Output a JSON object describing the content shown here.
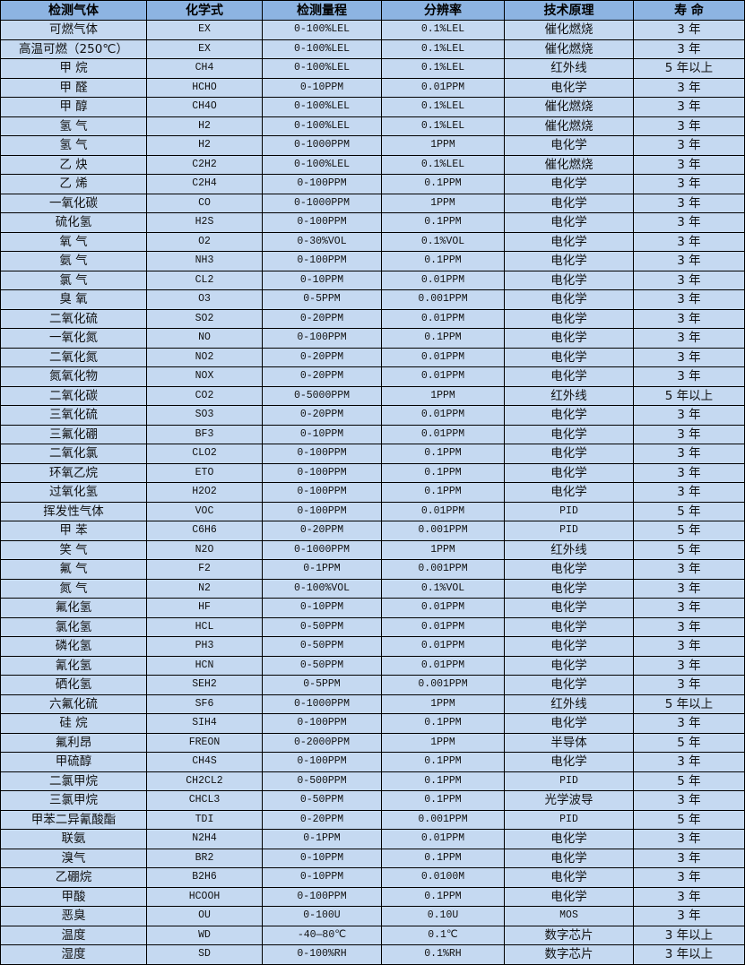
{
  "headers": [
    "检测气体",
    "化学式",
    "检测量程",
    "分辨率",
    "技术原理",
    "寿 命"
  ],
  "rows": [
    [
      "可燃气体",
      "EX",
      "0-100%LEL",
      "0.1%LEL",
      "催化燃烧",
      "3 年"
    ],
    [
      "高温可燃（250℃）",
      "EX",
      "0-100%LEL",
      "0.1%LEL",
      "催化燃烧",
      "3 年"
    ],
    [
      "甲 烷",
      "CH4",
      "0-100%LEL",
      "0.1%LEL",
      "红外线",
      "5 年以上"
    ],
    [
      "甲 醛",
      "HCHO",
      "0-10PPM",
      "0.01PPM",
      "电化学",
      "3 年"
    ],
    [
      "甲 醇",
      "CH4O",
      "0-100%LEL",
      "0.1%LEL",
      "催化燃烧",
      "3 年"
    ],
    [
      "氢 气",
      "H2",
      "0-100%LEL",
      "0.1%LEL",
      "催化燃烧",
      "3 年"
    ],
    [
      "氢 气",
      "H2",
      "0-1000PPM",
      "1PPM",
      "电化学",
      "3 年"
    ],
    [
      "乙 炔",
      "C2H2",
      "0-100%LEL",
      "0.1%LEL",
      "催化燃烧",
      "3 年"
    ],
    [
      "乙 烯",
      "C2H4",
      "0-100PPM",
      "0.1PPM",
      "电化学",
      "3 年"
    ],
    [
      "一氧化碳",
      "CO",
      "0-1000PPM",
      "1PPM",
      "电化学",
      "3 年"
    ],
    [
      "硫化氢",
      "H2S",
      "0-100PPM",
      "0.1PPM",
      "电化学",
      "3 年"
    ],
    [
      "氧 气",
      "O2",
      "0-30%VOL",
      "0.1%VOL",
      "电化学",
      "3 年"
    ],
    [
      "氨 气",
      "NH3",
      "0-100PPM",
      "0.1PPM",
      "电化学",
      "3 年"
    ],
    [
      "氯 气",
      "CL2",
      "0-10PPM",
      "0.01PPM",
      "电化学",
      "3 年"
    ],
    [
      "臭 氧",
      "O3",
      "0-5PPM",
      "0.001PPM",
      "电化学",
      "3 年"
    ],
    [
      "二氧化硫",
      "SO2",
      "0-20PPM",
      "0.01PPM",
      "电化学",
      "3 年"
    ],
    [
      "一氧化氮",
      "NO",
      "0-100PPM",
      "0.1PPM",
      "电化学",
      "3 年"
    ],
    [
      "二氧化氮",
      "NO2",
      "0-20PPM",
      "0.01PPM",
      "电化学",
      "3 年"
    ],
    [
      "氮氧化物",
      "NOX",
      "0-20PPM",
      "0.01PPM",
      "电化学",
      "3 年"
    ],
    [
      "二氧化碳",
      "CO2",
      "0-5000PPM",
      "1PPM",
      "红外线",
      "5 年以上"
    ],
    [
      "三氧化硫",
      "SO3",
      "0-20PPM",
      "0.01PPM",
      "电化学",
      "3 年"
    ],
    [
      "三氟化硼",
      "BF3",
      "0-10PPM",
      "0.01PPM",
      "电化学",
      "3 年"
    ],
    [
      "二氧化氯",
      "CLO2",
      "0-100PPM",
      "0.1PPM",
      "电化学",
      "3 年"
    ],
    [
      "环氧乙烷",
      "ETO",
      "0-100PPM",
      "0.1PPM",
      "电化学",
      "3 年"
    ],
    [
      "过氧化氢",
      "H2O2",
      "0-100PPM",
      "0.1PPM",
      "电化学",
      "3 年"
    ],
    [
      "挥发性气体",
      "VOC",
      "0-100PPM",
      "0.01PPM",
      "PID",
      "5 年"
    ],
    [
      "甲 苯",
      "C6H6",
      "0-20PPM",
      "0.001PPM",
      "PID",
      "5 年"
    ],
    [
      "笑 气",
      "N2O",
      "0-1000PPM",
      "1PPM",
      "红外线",
      "5 年"
    ],
    [
      "氟 气",
      "F2",
      "0-1PPM",
      "0.001PPM",
      "电化学",
      "3 年"
    ],
    [
      "氮 气",
      "N2",
      "0-100%VOL",
      "0.1%VOL",
      "电化学",
      "3 年"
    ],
    [
      "氟化氢",
      "HF",
      "0-10PPM",
      "0.01PPM",
      "电化学",
      "3 年"
    ],
    [
      "氯化氢",
      "HCL",
      "0-50PPM",
      "0.01PPM",
      "电化学",
      "3 年"
    ],
    [
      "磷化氢",
      "PH3",
      "0-50PPM",
      "0.01PPM",
      "电化学",
      "3 年"
    ],
    [
      "氰化氢",
      "HCN",
      "0-50PPM",
      "0.01PPM",
      "电化学",
      "3 年"
    ],
    [
      "硒化氢",
      "SEH2",
      "0-5PPM",
      "0.001PPM",
      "电化学",
      "3 年"
    ],
    [
      "六氟化硫",
      "SF6",
      "0-1000PPM",
      "1PPM",
      "红外线",
      "5 年以上"
    ],
    [
      "硅 烷",
      "SIH4",
      "0-100PPM",
      "0.1PPM",
      "电化学",
      "3 年"
    ],
    [
      "氟利昂",
      "FREON",
      "0-2000PPM",
      "1PPM",
      "半导体",
      "5 年"
    ],
    [
      "甲硫醇",
      "CH4S",
      "0-100PPM",
      "0.1PPM",
      "电化学",
      "3 年"
    ],
    [
      "二氯甲烷",
      "CH2CL2",
      "0-500PPM",
      "0.1PPM",
      "PID",
      "5 年"
    ],
    [
      "三氯甲烷",
      "CHCL3",
      "0-50PPM",
      "0.1PPM",
      "光学波导",
      "3 年"
    ],
    [
      "甲苯二异氰酸酯",
      "TDI",
      "0-20PPM",
      "0.001PPM",
      "PID",
      "5 年"
    ],
    [
      "联氨",
      "N2H4",
      "0-1PPM",
      "0.01PPM",
      "电化学",
      "3 年"
    ],
    [
      "溴气",
      "BR2",
      "0-10PPM",
      "0.1PPM",
      "电化学",
      "3 年"
    ],
    [
      "乙硼烷",
      "B2H6",
      "0-10PPM",
      "0.0100M",
      "电化学",
      "3 年"
    ],
    [
      "甲酸",
      "HCOOH",
      "0-100PPM",
      "0.1PPM",
      "电化学",
      "3 年"
    ],
    [
      "恶臭",
      "OU",
      "0-100U",
      "0.10U",
      "MOS",
      "3 年"
    ],
    [
      "温度",
      "WD",
      "-40—80℃",
      "0.1℃",
      "数字芯片",
      "3 年以上"
    ],
    [
      "湿度",
      "SD",
      "0-100%RH",
      "0.1%RH",
      "数字芯片",
      "3 年以上"
    ]
  ]
}
